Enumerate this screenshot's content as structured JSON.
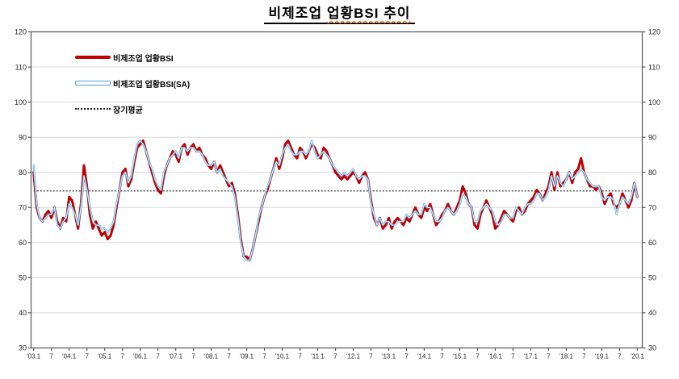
{
  "title": {
    "part1": "비제조업",
    "part2": "업황BSI 추이",
    "full": "비제조업 업황BSI 추이"
  },
  "legend": [
    {
      "label": "비제조업 업황BSI",
      "style": "thick-solid",
      "color": "#c00000"
    },
    {
      "label": "비제조업 업황BSI(SA)",
      "style": "thin-outlined",
      "color": "#4ba0d8"
    },
    {
      "label": "장기평균",
      "style": "dotted",
      "color": "#1a1a1a"
    }
  ],
  "chart_data": {
    "type": "line",
    "title": "비제조업 업황BSI 추이",
    "x_frequency": "monthly",
    "x_start": "2003.1",
    "x_end": "2020.1",
    "xticklabels": [
      "'03.1",
      "7",
      "'04.1",
      "7",
      "'05.1",
      "7",
      "'06.1",
      "7",
      "'07.1",
      "7",
      "'08.1",
      "7",
      "'09.1",
      "7",
      "'10.1",
      "7",
      "'11.1",
      "7",
      "'12.1",
      "7",
      "'13.1",
      "7",
      "'14.1",
      "7",
      "'15.1",
      "7",
      "'16.1",
      "7",
      "'17.1",
      "7",
      "'18.1",
      "7",
      "'19.1",
      "7",
      "'20.1"
    ],
    "xtick_month_step": 6,
    "ylim": [
      30,
      120
    ],
    "yticks": [
      30,
      40,
      50,
      60,
      70,
      80,
      90,
      100,
      110,
      120
    ],
    "grid": "horizontal",
    "legend_position": "top-left-inside",
    "long_term_average": 74.7,
    "colors": {
      "grid": "#d9d9d9",
      "spine": "#595959",
      "average_line": "#1a1a1a"
    },
    "series": [
      {
        "name": "비제조업 업황BSI",
        "color": "#c00000",
        "style": "thick",
        "values": [
          80,
          70,
          67,
          66,
          68,
          69,
          67,
          70,
          66,
          64,
          67,
          66,
          73,
          72,
          68,
          64,
          71,
          82,
          76,
          68,
          64,
          66,
          64,
          62,
          63,
          61,
          62,
          65,
          70,
          75,
          80,
          81,
          76,
          78,
          83,
          87,
          88,
          89,
          86,
          83,
          80,
          77,
          75,
          74,
          79,
          82,
          84,
          86,
          85,
          83,
          87,
          88,
          85,
          87,
          88,
          86,
          87,
          85,
          84,
          82,
          81,
          83,
          80,
          82,
          80,
          78,
          76,
          77,
          74,
          68,
          61,
          56,
          56,
          55,
          58,
          62,
          66,
          70,
          73,
          75,
          78,
          81,
          84,
          81,
          84,
          88,
          89,
          87,
          85,
          84,
          87,
          86,
          84,
          86,
          88,
          87,
          85,
          84,
          87,
          86,
          84,
          82,
          80,
          79,
          78,
          79,
          78,
          79,
          80,
          79,
          77,
          79,
          80,
          78,
          72,
          67,
          65,
          67,
          64,
          65,
          67,
          64,
          66,
          67,
          66,
          65,
          67,
          66,
          68,
          70,
          68,
          67,
          70,
          69,
          71,
          68,
          65,
          66,
          68,
          69,
          71,
          69,
          68,
          70,
          72,
          76,
          74,
          71,
          70,
          65,
          64,
          68,
          70,
          72,
          70,
          68,
          64,
          65,
          67,
          69,
          68,
          67,
          66,
          69,
          70,
          68,
          69,
          71,
          72,
          73,
          75,
          74,
          72,
          74,
          76,
          80,
          75,
          80,
          76,
          77,
          78,
          80,
          77,
          80,
          81,
          84,
          80,
          78,
          76,
          76,
          75,
          76,
          74,
          71,
          73,
          74,
          71,
          70,
          71,
          74,
          72,
          70,
          72,
          77,
          73
        ]
      },
      {
        "name": "비제조업 업황BSI(SA)",
        "color": "#4ba0d8",
        "style": "thin-outlined",
        "values": [
          82,
          71,
          67,
          66,
          67,
          68,
          68,
          70,
          65,
          64,
          66,
          67,
          71,
          70,
          68,
          65,
          70,
          79,
          75,
          70,
          66,
          65,
          65,
          64,
          64,
          63,
          64,
          66,
          71,
          75,
          79,
          80,
          77,
          79,
          84,
          88,
          89,
          88,
          86,
          83,
          81,
          78,
          76,
          75,
          80,
          82,
          84,
          85,
          86,
          84,
          87,
          87,
          86,
          87,
          87,
          86,
          86,
          85,
          83,
          82,
          82,
          83,
          80,
          81,
          79,
          78,
          77,
          76,
          73,
          67,
          60,
          56,
          55,
          55,
          58,
          62,
          67,
          70,
          73,
          76,
          78,
          81,
          83,
          82,
          85,
          87,
          88,
          86,
          85,
          85,
          86,
          86,
          85,
          86,
          89,
          86,
          84,
          85,
          86,
          85,
          84,
          82,
          81,
          80,
          79,
          80,
          79,
          80,
          81,
          79,
          78,
          79,
          79,
          78,
          71,
          68,
          65,
          67,
          65,
          66,
          66,
          65,
          65,
          66,
          66,
          66,
          68,
          67,
          68,
          69,
          68,
          68,
          71,
          70,
          70,
          68,
          66,
          66,
          67,
          69,
          70,
          69,
          68,
          69,
          71,
          74,
          73,
          71,
          70,
          66,
          66,
          69,
          70,
          71,
          70,
          69,
          66,
          65,
          66,
          68,
          68,
          67,
          67,
          70,
          69,
          68,
          70,
          71,
          71,
          72,
          74,
          74,
          72,
          73,
          75,
          79,
          76,
          79,
          77,
          76,
          78,
          80,
          78,
          79,
          80,
          81,
          80,
          78,
          77,
          76,
          76,
          76,
          73,
          72,
          73,
          73,
          72,
          68,
          71,
          73,
          72,
          71,
          73,
          77,
          73
        ]
      }
    ]
  }
}
